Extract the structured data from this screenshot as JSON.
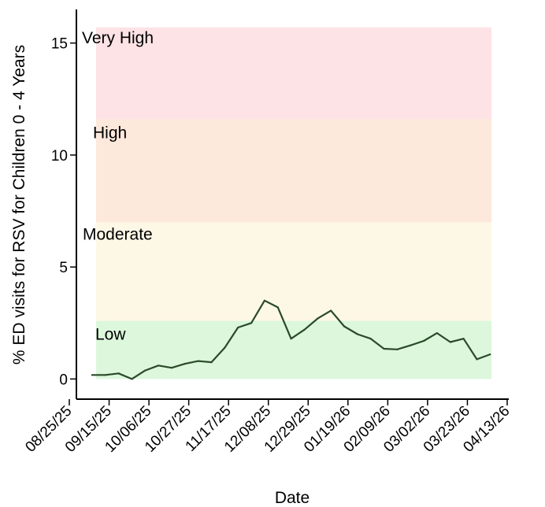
{
  "chart_data": {
    "type": "line",
    "xlabel": "Date",
    "ylabel": "% ED visits for RSV for Children 0 - 4 Years",
    "ylim": [
      -0.9,
      16.5
    ],
    "yticks": [
      0,
      5,
      10,
      15
    ],
    "xticks": [
      "08/25/25",
      "09/15/25",
      "10/06/25",
      "10/27/25",
      "11/17/25",
      "12/08/25",
      "12/29/25",
      "01/19/26",
      "02/09/26",
      "03/02/26",
      "03/23/26",
      "04/13/26"
    ],
    "bands": [
      {
        "label": "Low",
        "from": 0,
        "to": 2.6,
        "color": "#dcf7dc"
      },
      {
        "label": "Moderate",
        "from": 2.6,
        "to": 7.0,
        "color": "#fdf7e6"
      },
      {
        "label": "High",
        "from": 7.0,
        "to": 11.6,
        "color": "#fde8dc"
      },
      {
        "label": "Very High",
        "from": 11.6,
        "to": 15.7,
        "color": "#fde3e5"
      }
    ],
    "series": [
      {
        "color": "#2a4a2a",
        "points": [
          [
            "09/06/25",
            0.18
          ],
          [
            "09/13/25",
            0.18
          ],
          [
            "09/20/25",
            0.25
          ],
          [
            "09/27/25",
            0.0
          ],
          [
            "10/04/25",
            0.38
          ],
          [
            "10/11/25",
            0.6
          ],
          [
            "10/18/25",
            0.5
          ],
          [
            "10/25/25",
            0.68
          ],
          [
            "11/01/25",
            0.8
          ],
          [
            "11/08/25",
            0.75
          ],
          [
            "11/15/25",
            1.4
          ],
          [
            "11/22/25",
            2.3
          ],
          [
            "11/29/25",
            2.5
          ],
          [
            "12/06/25",
            3.5
          ],
          [
            "12/13/25",
            3.2
          ],
          [
            "12/20/25",
            1.8
          ],
          [
            "12/27/25",
            2.2
          ],
          [
            "01/03/26",
            2.7
          ],
          [
            "01/10/26",
            3.05
          ],
          [
            "01/17/26",
            2.35
          ],
          [
            "01/24/26",
            2.0
          ],
          [
            "01/31/26",
            1.8
          ],
          [
            "02/07/26",
            1.35
          ],
          [
            "02/14/26",
            1.32
          ],
          [
            "02/21/26",
            1.5
          ],
          [
            "02/28/26",
            1.7
          ],
          [
            "03/07/26",
            2.05
          ],
          [
            "03/14/26",
            1.65
          ],
          [
            "03/21/26",
            1.8
          ],
          [
            "03/28/26",
            0.88
          ],
          [
            "04/04/26",
            1.1
          ]
        ]
      }
    ]
  }
}
